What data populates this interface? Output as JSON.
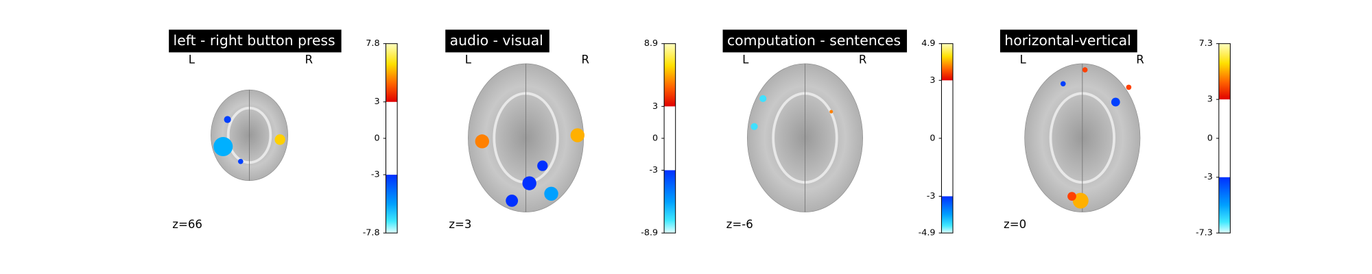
{
  "panels": [
    {
      "title": "left - right button press",
      "left": "L",
      "right": "R",
      "slice": "z=66",
      "cbar_ticks": [
        7.8,
        3,
        0,
        -3,
        -7.8
      ]
    },
    {
      "title": "audio - visual",
      "left": "L",
      "right": "R",
      "slice": "z=3",
      "cbar_ticks": [
        8.9,
        3,
        0,
        -3,
        -8.9
      ]
    },
    {
      "title": "computation - sentences",
      "left": "L",
      "right": "R",
      "slice": "z=-6",
      "cbar_ticks": [
        4.9,
        3,
        0,
        -3,
        -4.9
      ]
    },
    {
      "title": "horizontal-vertical",
      "left": "L",
      "right": "R",
      "slice": "z=0",
      "cbar_ticks": [
        7.3,
        3,
        0,
        -3,
        -7.3
      ]
    }
  ]
}
